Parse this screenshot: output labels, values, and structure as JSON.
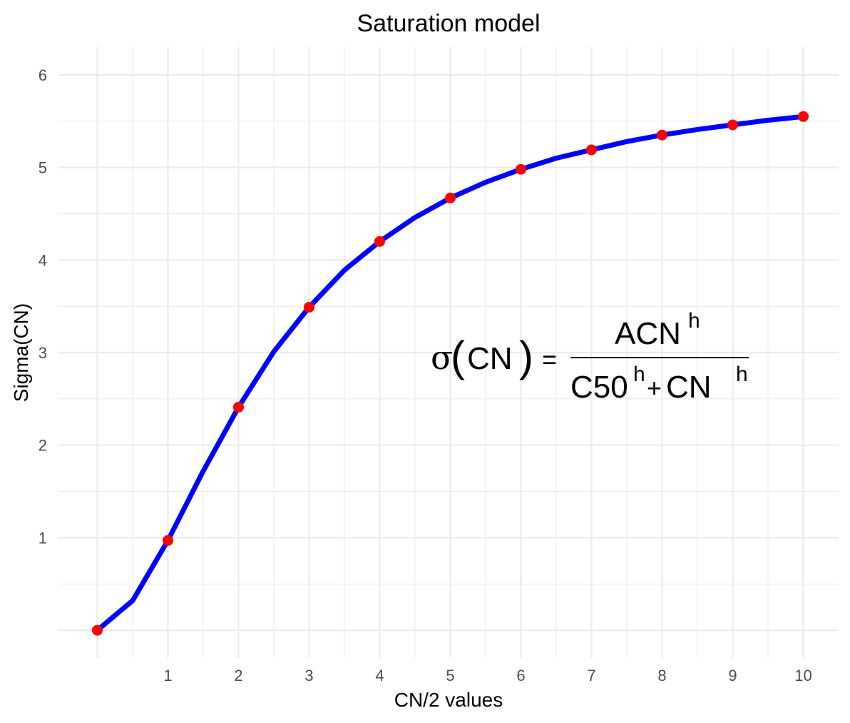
{
  "chart_data": {
    "type": "line",
    "title": "Saturation model",
    "xlabel": "CN/2 values",
    "ylabel": "Sigma(CN)",
    "xlim": [
      -0.55,
      10.5
    ],
    "ylim": [
      -0.3,
      6.3
    ],
    "x_ticks": [
      "1",
      "2",
      "3",
      "4",
      "5",
      "6",
      "7",
      "8",
      "9",
      "10"
    ],
    "y_ticks": [
      "1",
      "2",
      "3",
      "4",
      "5",
      "6"
    ],
    "series": [
      {
        "name": "curve",
        "color": "#0000ff",
        "x": [
          0,
          0.5,
          1,
          1.5,
          2,
          2.5,
          3,
          3.5,
          4,
          4.5,
          5,
          5.5,
          6,
          6.5,
          7,
          7.5,
          8,
          8.5,
          9,
          9.5,
          10
        ],
        "values": [
          0,
          0.32,
          0.97,
          1.72,
          2.41,
          3.01,
          3.49,
          3.89,
          4.2,
          4.46,
          4.67,
          4.84,
          4.98,
          5.1,
          5.19,
          5.28,
          5.35,
          5.41,
          5.46,
          5.51,
          5.55
        ]
      },
      {
        "name": "points",
        "color": "#ff0000",
        "x": [
          0,
          1,
          2,
          3,
          4,
          5,
          6,
          7,
          8,
          9,
          10
        ],
        "values": [
          0,
          0.97,
          2.41,
          3.49,
          4.2,
          4.67,
          4.98,
          5.19,
          5.35,
          5.46,
          5.55
        ]
      }
    ],
    "annotation": {
      "sigma": "σ",
      "lhs_arg": "CN",
      "numerator_base": "ACN",
      "exponent": "h",
      "denominator_first": "C50",
      "plus": "+",
      "denominator_second": "CN",
      "equals": "="
    }
  }
}
